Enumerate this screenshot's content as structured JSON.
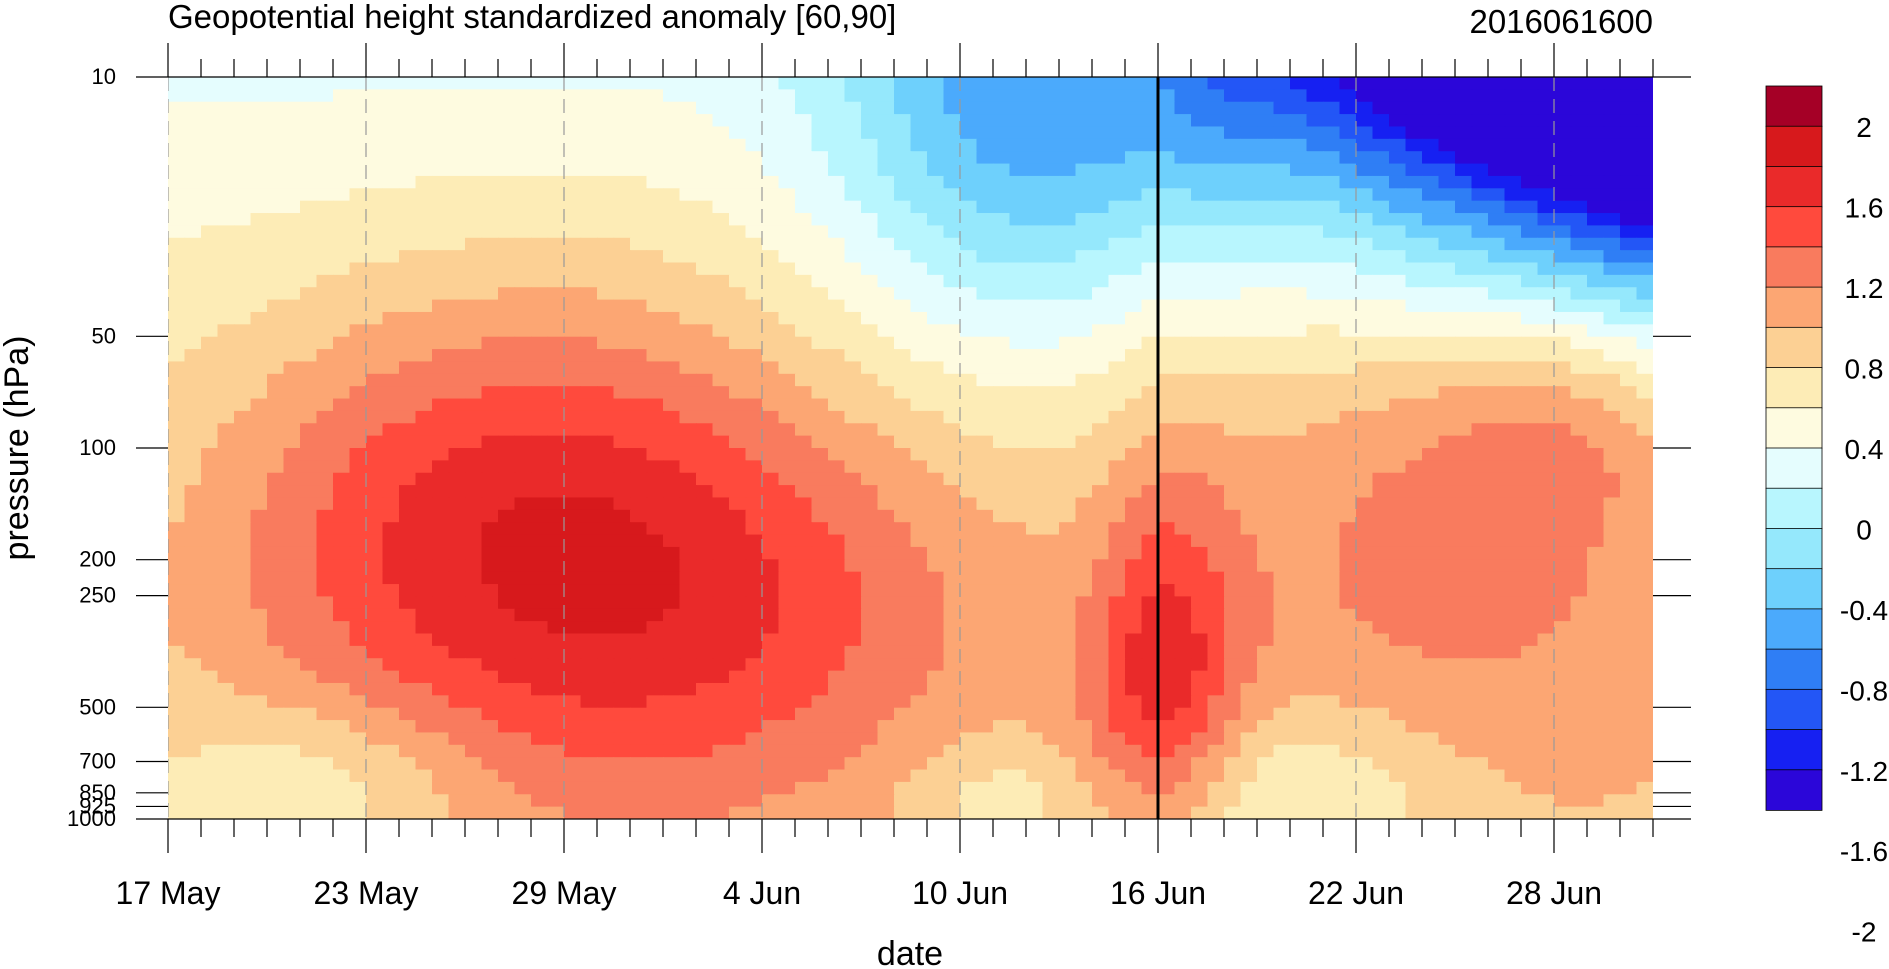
{
  "chart_data": {
    "type": "heatmap",
    "title": "Geopotential height standardized anomaly [60,90]",
    "timestamp": "2016061600",
    "xlabel": "date",
    "ylabel": "pressure (hPa)",
    "x_ticks": [
      "17 May",
      "23 May",
      "29 May",
      "4 Jun",
      "10 Jun",
      "16 Jun",
      "22 Jun",
      "28 Jun"
    ],
    "y_ticks": [
      "10",
      "50",
      "100",
      "200",
      "250",
      "500",
      "700",
      "850",
      "925",
      "1000"
    ],
    "y_scale": "log",
    "xlim_days": [
      0,
      45
    ],
    "ylim": [
      1000,
      10
    ],
    "colorbar": {
      "labels": [
        "2",
        "1.6",
        "1.2",
        "0.8",
        "0.4",
        "0",
        "-0.4",
        "-0.8",
        "-1.2",
        "-1.6",
        "-2"
      ],
      "colors": [
        "#a50026",
        "#d7191c",
        "#ea2a2a",
        "#ff4a3d",
        "#f97b5e",
        "#fca673",
        "#fcd094",
        "#fdecb6",
        "#fefbe0",
        "#e5fdfe",
        "#b8f6fe",
        "#95e8fc",
        "#6ed0fc",
        "#4baafc",
        "#2f7ef5",
        "#2356f6",
        "#1620f2",
        "#2b06d9"
      ]
    },
    "levels": [
      -2.2,
      -2.0,
      -1.8,
      -1.6,
      -1.4,
      -1.2,
      -1.0,
      -0.8,
      -0.6,
      -0.4,
      -0.2,
      0,
      0.2,
      0.4,
      0.6,
      0.8
    ],
    "current_date": "16 Jun",
    "grid": true
  }
}
